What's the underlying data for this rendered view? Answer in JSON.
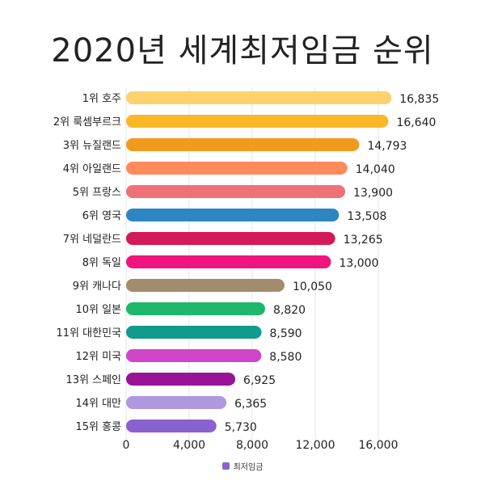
{
  "chart_data": {
    "type": "bar",
    "orientation": "horizontal",
    "title": "2020년 세계최저임금 순위",
    "categories": [
      "1위 호주",
      "2위 룩셈부르크",
      "3위 뉴질랜드",
      "4위 아일랜드",
      "5위 프랑스",
      "6위 영국",
      "7위 네덜란드",
      "8위 독일",
      "9위 캐나다",
      "10위 일본",
      "11위 대한민국",
      "12위 미국",
      "13위 스페인",
      "14위 대만",
      "15위 홍콩"
    ],
    "values": [
      16835,
      16640,
      14793,
      14040,
      13900,
      13508,
      13265,
      13000,
      10050,
      8820,
      8590,
      8580,
      6925,
      6365,
      5730
    ],
    "value_labels": [
      "16,835",
      "16,640",
      "14,793",
      "14,040",
      "13,900",
      "13,508",
      "13,265",
      "13,000",
      "10,050",
      "8,820",
      "8,590",
      "8,580",
      "6,925",
      "6,365",
      "5,730"
    ],
    "colors": [
      "#FDD26E",
      "#FBB726",
      "#F29A1D",
      "#FF8A5C",
      "#F07078",
      "#2E86C1",
      "#D4195A",
      "#F0147E",
      "#A38B6D",
      "#1EB86C",
      "#149A8C",
      "#CF46C9",
      "#9A1396",
      "#AF98E0",
      "#8A62CF"
    ],
    "xlim": [
      0,
      16000
    ],
    "xticks": [
      0,
      4000,
      8000,
      12000,
      16000
    ],
    "xtick_labels": [
      "0",
      "4,000",
      "8,000",
      "12,000",
      "16,000"
    ],
    "legend": {
      "label": "최저임금",
      "color": "#8A62CF",
      "position": "bottom"
    }
  }
}
